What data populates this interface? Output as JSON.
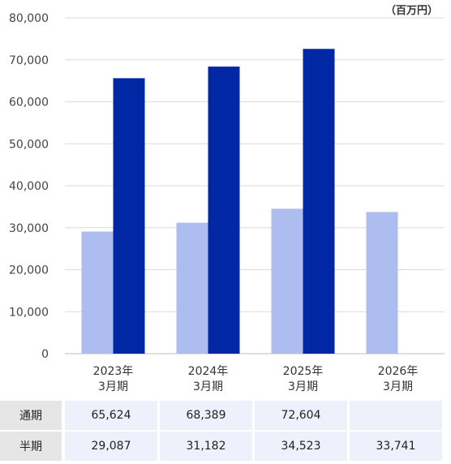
{
  "chart_data": {
    "type": "bar",
    "unit": "（百万円）",
    "categories": [
      [
        "2023年",
        "3月期"
      ],
      [
        "2024年",
        "3月期"
      ],
      [
        "2025年",
        "3月期"
      ],
      [
        "2026年",
        "3月期"
      ]
    ],
    "series": [
      {
        "name": "半期",
        "values": [
          29087,
          31182,
          34523,
          33741
        ],
        "color": "#adbdf0"
      },
      {
        "name": "通期",
        "values": [
          65624,
          68389,
          72604,
          null
        ],
        "color": "#0028a5"
      }
    ],
    "ylim": [
      0,
      80000
    ],
    "yticks": [
      "0",
      "10,000",
      "20,000",
      "30,000",
      "40,000",
      "50,000",
      "60,000",
      "70,000",
      "80,000"
    ],
    "grid": true
  },
  "table": {
    "rows": [
      {
        "label": "通期",
        "values": [
          "65,624",
          "68,389",
          "72,604",
          ""
        ]
      },
      {
        "label": "半期",
        "values": [
          "29,087",
          "31,182",
          "34,523",
          "33,741"
        ]
      }
    ]
  }
}
